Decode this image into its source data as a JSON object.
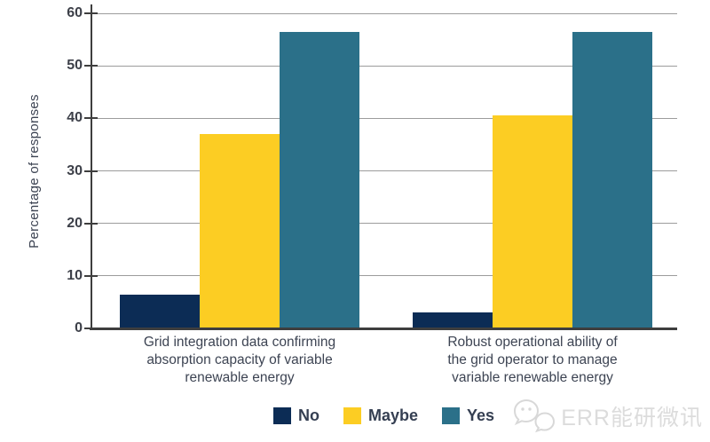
{
  "chart_data": {
    "type": "bar",
    "title": "",
    "xlabel": "",
    "ylabel": "Percentage of responses",
    "ylim": [
      0,
      60
    ],
    "yticks": [
      0,
      10,
      20,
      30,
      40,
      50,
      60
    ],
    "grid": true,
    "legend_position": "bottom",
    "categories": [
      "Grid integration data confirming\nabsorption capacity of variable\nrenewable energy",
      "Robust operational ability of\nthe grid operator to manage\nvariable renewable energy"
    ],
    "series": [
      {
        "name": "No",
        "color": "#0c2c55",
        "values": [
          6.5,
          3
        ]
      },
      {
        "name": "Maybe",
        "color": "#fccd23",
        "values": [
          37,
          40.5
        ]
      },
      {
        "name": "Yes",
        "color": "#2b7089",
        "values": [
          56.5,
          56.5
        ]
      }
    ]
  },
  "watermark": {
    "text": "ERR能研微讯",
    "icon": "speech-bubbles-icon"
  },
  "colors": {
    "gridline": "#9c9c9c",
    "axis": "#3e3e3e",
    "tick_text": "#3d4049",
    "label_text": "#3d4453",
    "watermark": "#dcdcdc",
    "background": "#ffffff"
  }
}
